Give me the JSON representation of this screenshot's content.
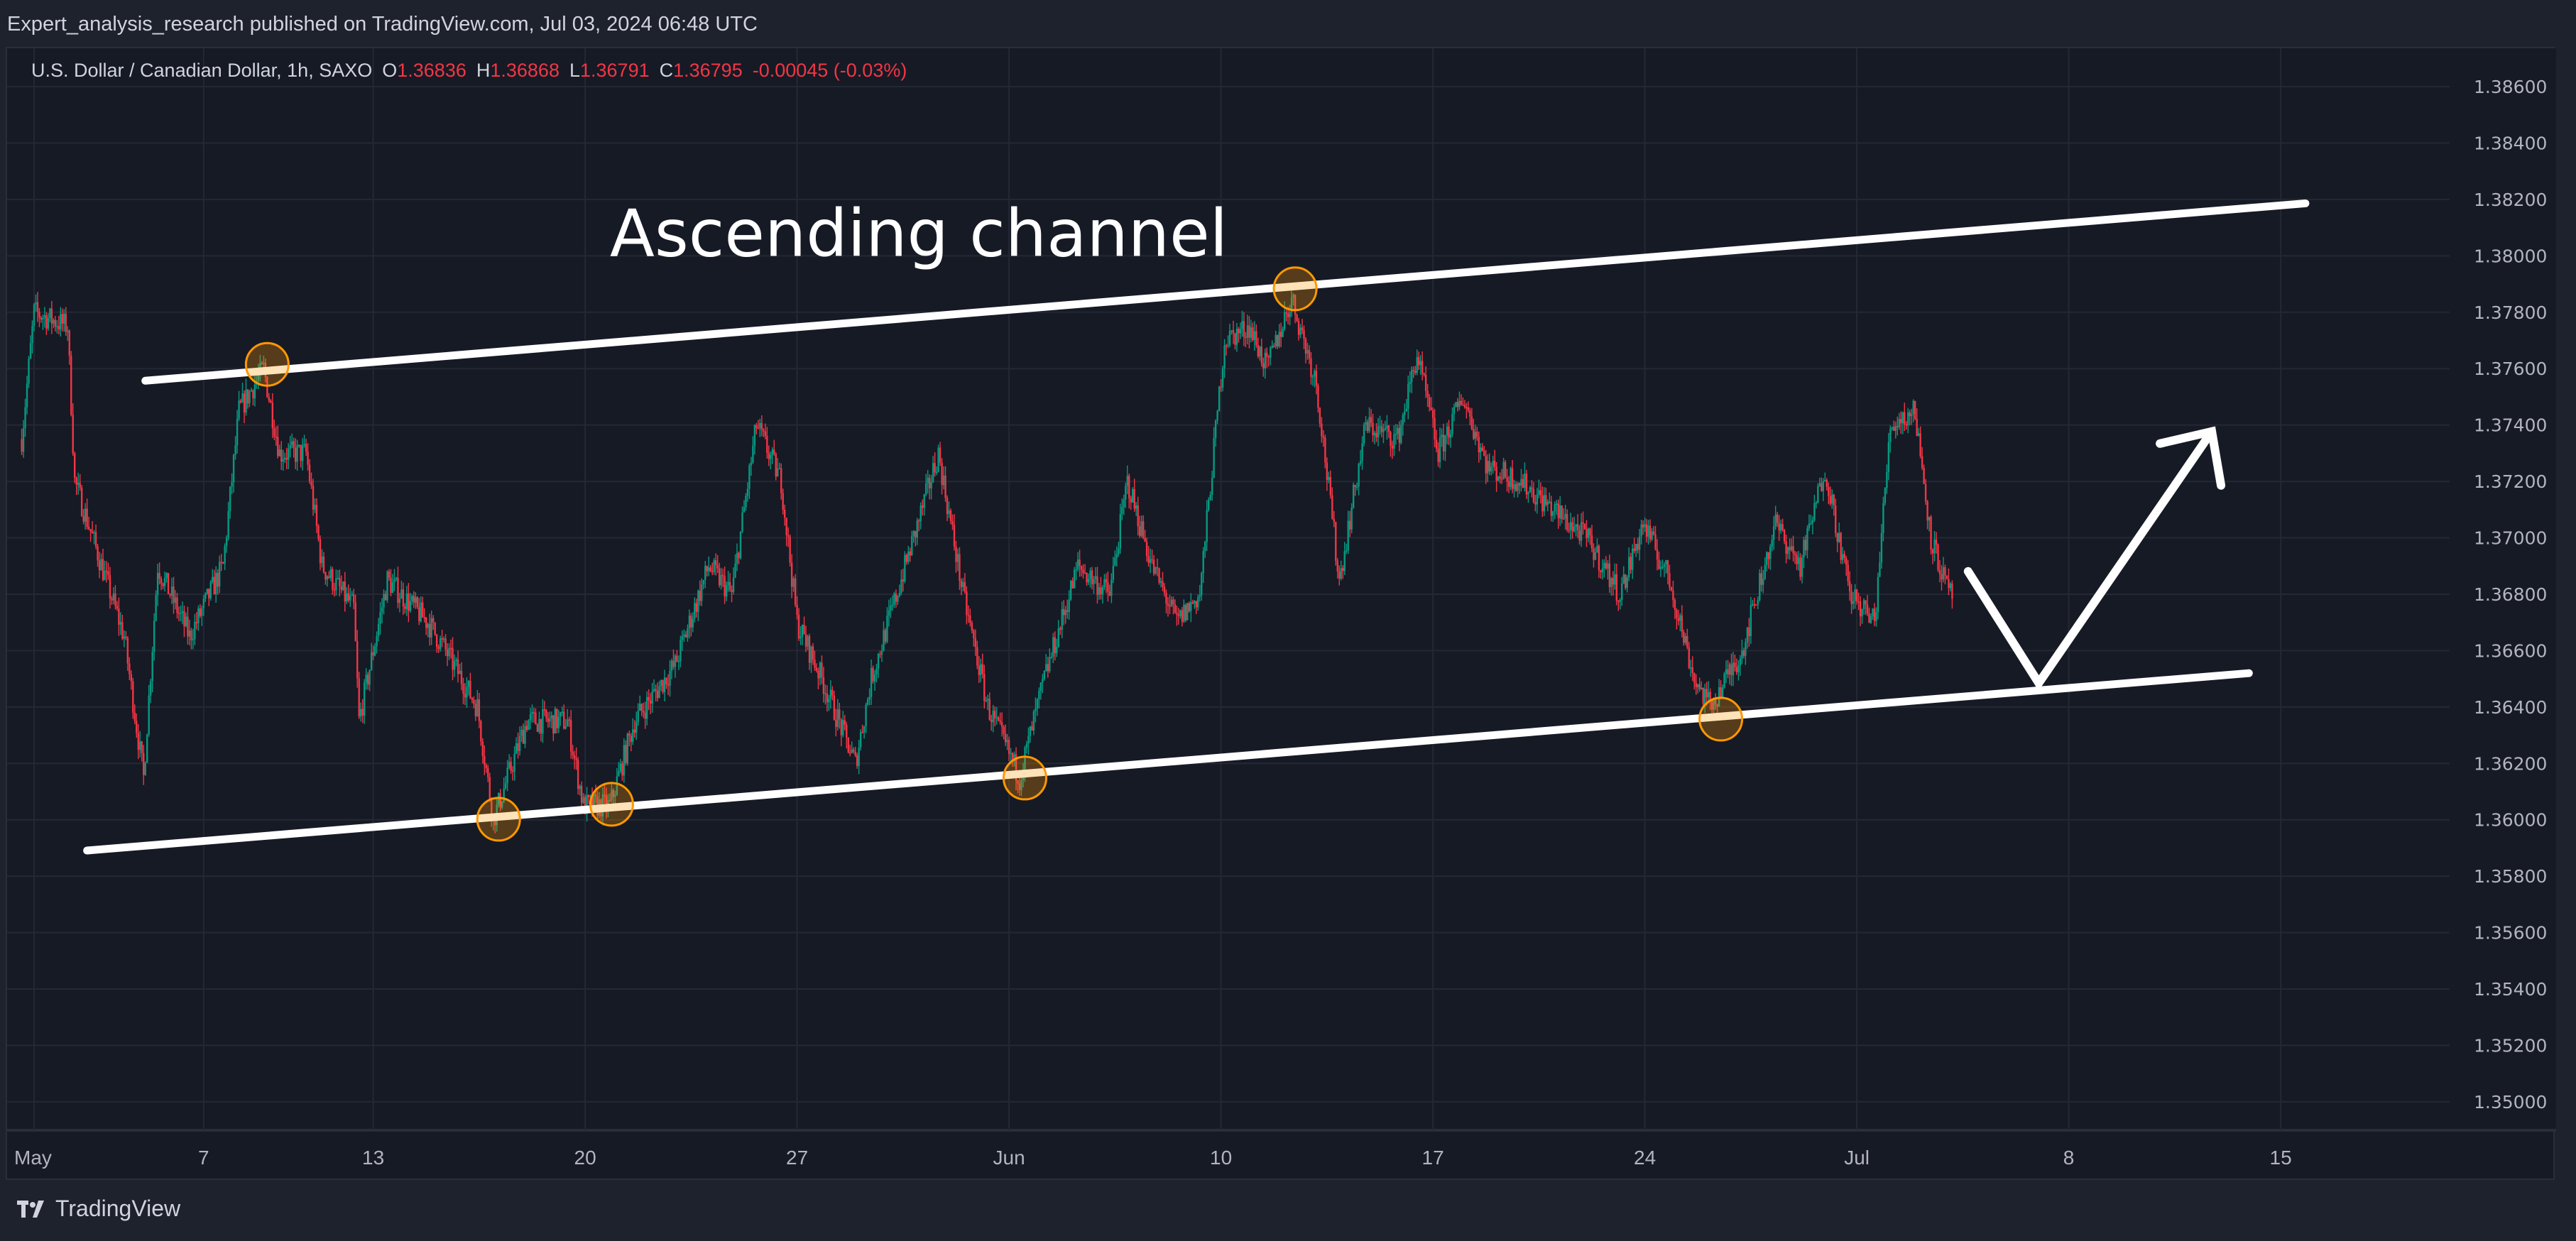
{
  "header": {
    "publisher_line": "Expert_analysis_research published on TradingView.com, Jul 03, 2024 06:48 UTC"
  },
  "legend": {
    "symbol": "U.S. Dollar / Canadian Dollar, 1h, SAXO",
    "open_label": "O",
    "open": "1.36836",
    "high_label": "H",
    "high": "1.36868",
    "low_label": "L",
    "low": "1.36791",
    "close_label": "C",
    "close": "1.36795",
    "change": "-0.00045 (-0.03%)"
  },
  "footer": {
    "brand": "TradingView"
  },
  "colors": {
    "background": "#161a25",
    "frame": "#1e222d",
    "grid": "#242834",
    "up": "#089981",
    "down": "#f23645",
    "drawing": "#ffffff",
    "marker": "#ff9800",
    "axis_text": "#b2b5be"
  },
  "chart_data": {
    "type": "candlestick",
    "timeframe": "1h",
    "grid": true,
    "ylim": [
      1.3494,
      1.3866
    ],
    "y_ticks": [
      "1.38600",
      "1.38400",
      "1.38200",
      "1.38000",
      "1.37800",
      "1.37600",
      "1.37400",
      "1.37200",
      "1.37000",
      "1.36800",
      "1.36600",
      "1.36400",
      "1.36200",
      "1.36000",
      "1.35800",
      "1.35600",
      "1.35400",
      "1.35200",
      "1.35000"
    ],
    "x_ticks": [
      {
        "label": "May",
        "date": "2024-05-01 00:00"
      },
      {
        "label": "7",
        "date": "2024-05-07 00:00"
      },
      {
        "label": "13",
        "date": "2024-05-13 00:00"
      },
      {
        "label": "20",
        "date": "2024-05-20 00:00"
      },
      {
        "label": "27",
        "date": "2024-05-27 00:00"
      },
      {
        "label": "Jun",
        "date": "2024-06-03 00:00"
      },
      {
        "label": "10",
        "date": "2024-06-10 00:00"
      },
      {
        "label": "17",
        "date": "2024-06-17 00:00"
      },
      {
        "label": "24",
        "date": "2024-06-24 00:00"
      },
      {
        "label": "Jul",
        "date": "2024-07-01 00:00"
      },
      {
        "label": "8",
        "date": "2024-07-08 00:00"
      },
      {
        "label": "15",
        "date": "2024-07-15 00:00"
      }
    ],
    "price_path": [
      [
        "2024-04-30 17:00",
        1.3735
      ],
      [
        "2024-05-01 00:00",
        1.378
      ],
      [
        "2024-05-01 19:00",
        1.3775
      ],
      [
        "2024-05-01 23:00",
        1.372
      ],
      [
        "2024-05-03 03:00",
        1.3665
      ],
      [
        "2024-05-03 14:00",
        1.3615
      ],
      [
        "2024-05-03 22:00",
        1.369
      ],
      [
        "2024-05-06 16:00",
        1.3665
      ],
      [
        "2024-05-07 11:00",
        1.369
      ],
      [
        "2024-05-07 20:00",
        1.3745
      ],
      [
        "2024-05-08 10:00",
        1.376
      ],
      [
        "2024-05-08 19:00",
        1.373
      ],
      [
        "2024-05-09 10:00",
        1.373
      ],
      [
        "2024-05-09 19:00",
        1.369
      ],
      [
        "2024-05-10 13:00",
        1.3675
      ],
      [
        "2024-05-10 16:00",
        1.3635
      ],
      [
        "2024-05-13 08:00",
        1.3685
      ],
      [
        "2024-05-14 07:00",
        1.367
      ],
      [
        "2024-05-14 17:00",
        1.366
      ],
      [
        "2024-05-15 11:00",
        1.364
      ],
      [
        "2024-05-15 20:00",
        1.36
      ],
      [
        "2024-05-16 15:00",
        1.3635
      ],
      [
        "2024-05-17 14:00",
        1.3635
      ],
      [
        "2024-05-17 23:00",
        1.3605
      ],
      [
        "2024-05-20 14:00",
        1.3605
      ],
      [
        "2024-05-21 04:00",
        1.3635
      ],
      [
        "2024-05-22 03:00",
        1.3655
      ],
      [
        "2024-05-22 22:00",
        1.369
      ],
      [
        "2024-05-23 11:00",
        1.368
      ],
      [
        "2024-05-24 01:00",
        1.374
      ],
      [
        "2024-05-24 15:00",
        1.372
      ],
      [
        "2024-05-27 00:00",
        1.367
      ],
      [
        "2024-05-27 14:00",
        1.365
      ],
      [
        "2024-05-28 09:00",
        1.362
      ],
      [
        "2024-05-28 18:00",
        1.365
      ],
      [
        "2024-05-29 18:00",
        1.37
      ],
      [
        "2024-05-30 08:00",
        1.373
      ],
      [
        "2024-05-30 22:00",
        1.368
      ],
      [
        "2024-05-31 12:00",
        1.364
      ],
      [
        "2024-06-03 06:00",
        1.3615
      ],
      [
        "2024-06-03 20:00",
        1.365
      ],
      [
        "2024-06-04 15:00",
        1.369
      ],
      [
        "2024-06-05 09:00",
        1.368
      ],
      [
        "2024-06-05 19:00",
        1.372
      ],
      [
        "2024-06-06 09:00",
        1.369
      ],
      [
        "2024-06-06 23:00",
        1.367
      ],
      [
        "2024-06-07 12:00",
        1.368
      ],
      [
        "2024-06-10 02:00",
        1.377
      ],
      [
        "2024-06-10 16:00",
        1.3775
      ],
      [
        "2024-06-11 02:00",
        1.376
      ],
      [
        "2024-06-11 16:00",
        1.3785
      ],
      [
        "2024-06-12 06:00",
        1.3755
      ],
      [
        "2024-06-12 19:00",
        1.3685
      ],
      [
        "2024-06-13 10:00",
        1.374
      ],
      [
        "2024-06-14 04:00",
        1.3735
      ],
      [
        "2024-06-14 15:00",
        1.3765
      ],
      [
        "2024-06-17 03:00",
        1.373
      ],
      [
        "2024-06-17 17:00",
        1.375
      ],
      [
        "2024-06-18 07:00",
        1.3725
      ],
      [
        "2024-06-19 02:00",
        1.372
      ],
      [
        "2024-06-19 20:00",
        1.371
      ],
      [
        "2024-06-20 15:00",
        1.37
      ],
      [
        "2024-06-21 10:00",
        1.368
      ],
      [
        "2024-06-21 23:00",
        1.3705
      ],
      [
        "2024-06-24 14:00",
        1.3685
      ],
      [
        "2024-06-25 04:00",
        1.365
      ],
      [
        "2024-06-25 13:00",
        1.364
      ],
      [
        "2024-06-26 07:00",
        1.366
      ],
      [
        "2024-06-27 02:00",
        1.3705
      ],
      [
        "2024-06-27 16:00",
        1.369
      ],
      [
        "2024-06-28 06:00",
        1.3725
      ],
      [
        "2024-06-28 20:00",
        1.368
      ],
      [
        "2024-07-01 10:00",
        1.367
      ],
      [
        "2024-07-01 19:00",
        1.374
      ],
      [
        "2024-07-02 09:00",
        1.3745
      ],
      [
        "2024-07-02 18:00",
        1.37
      ],
      [
        "2024-07-03 04:00",
        1.368
      ],
      [
        "2024-07-03 06:00",
        1.36795
      ]
    ],
    "drawings": {
      "title_text": {
        "text": "Ascending channel",
        "date": "2024-05-20 14:00",
        "price": 1.3807
      },
      "upper_line": [
        [
          "2024-05-03 15:00",
          1.37557
        ],
        [
          "2024-07-15 14:00",
          1.38186
        ]
      ],
      "lower_line": [
        [
          "2024-05-02 06:00",
          1.35891
        ],
        [
          "2024-07-12 06:00",
          1.3652
        ]
      ],
      "projection_arrow": [
        [
          "2024-07-03 15:00",
          1.36881
        ],
        [
          "2024-07-05 07:00",
          1.36485
        ],
        [
          "2024-07-11 09:00",
          1.37377
        ]
      ],
      "touch_markers": [
        [
          "2024-05-08 12:00",
          1.37615
        ],
        [
          "2024-05-15 23:00",
          1.36002
        ],
        [
          "2024-05-20 15:00",
          1.36055
        ],
        [
          "2024-06-03 09:00",
          1.36148
        ],
        [
          "2024-06-11 18:00",
          1.37883
        ],
        [
          "2024-06-25 19:00",
          1.36357
        ]
      ]
    }
  }
}
